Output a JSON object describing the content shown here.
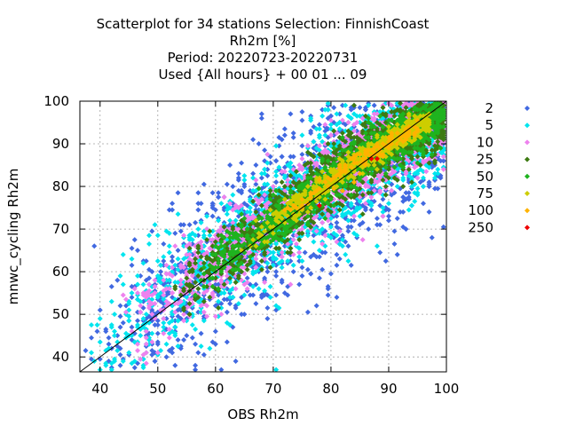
{
  "chart_data": {
    "type": "scatter",
    "title_lines": [
      "Scatterplot for   34 stations Selection: FinnishCoast",
      "Rh2m [%]",
      "Period: 20220723-20220731",
      "Used {All hours} + 00 01 ... 09"
    ],
    "xlabel": "OBS Rh2m",
    "ylabel": "mnwc_cycling Rh2m",
    "xlim": [
      36.5,
      100
    ],
    "ylim": [
      36.5,
      100
    ],
    "xticks": [
      40,
      50,
      60,
      70,
      80,
      90,
      100
    ],
    "yticks": [
      40,
      50,
      60,
      70,
      80,
      90,
      100
    ],
    "grid": true,
    "reference_line": "y = x",
    "legend_placement": "right",
    "marker": "diamond",
    "density_classes": [
      {
        "label": "2",
        "color": "#4169e1"
      },
      {
        "label": "5",
        "color": "#00e5ee"
      },
      {
        "label": "10",
        "color": "#ee82ee"
      },
      {
        "label": "25",
        "color": "#3d7a12"
      },
      {
        "label": "50",
        "color": "#1fb31f"
      },
      {
        "label": "75",
        "color": "#cdcd00"
      },
      {
        "label": "100",
        "color": "#ffb300"
      },
      {
        "label": "250",
        "color": "#ee0000"
      }
    ],
    "points_approx": {
      "250": [
        [
          78,
          75.5
        ],
        [
          87,
          86.5
        ],
        [
          88,
          86.5
        ]
      ],
      "100": [
        [
          82,
          79
        ],
        [
          85,
          83
        ],
        [
          86,
          85
        ],
        [
          89,
          87
        ],
        [
          84,
          81
        ]
      ],
      "75": [
        [
          70,
          69
        ],
        [
          74,
          72
        ],
        [
          76,
          74
        ],
        [
          79,
          77
        ],
        [
          81,
          80
        ],
        [
          83,
          82
        ],
        [
          85,
          85
        ],
        [
          88,
          84
        ],
        [
          90,
          88
        ],
        [
          92,
          90
        ]
      ]
    }
  }
}
